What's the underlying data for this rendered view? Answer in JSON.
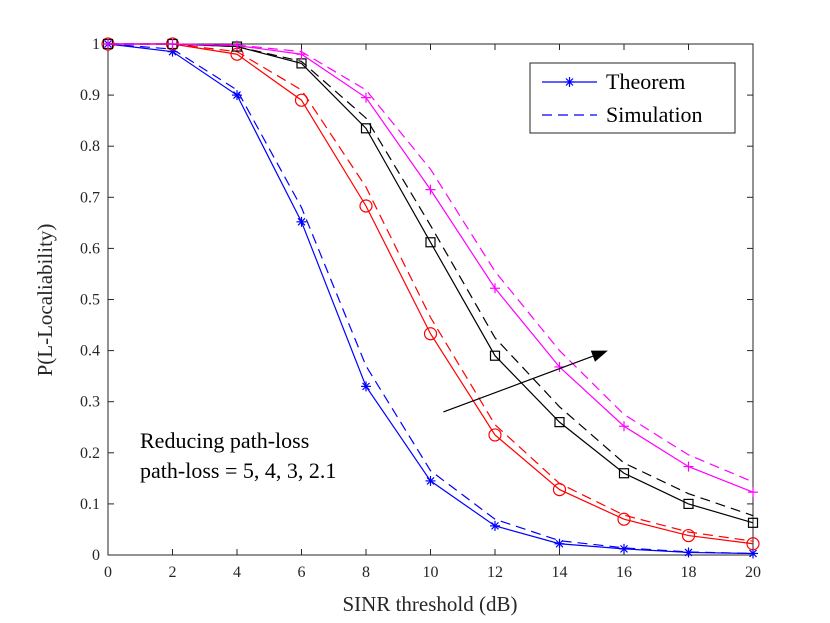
{
  "chart_data": {
    "type": "line",
    "xlabel": "SINR threshold (dB)",
    "ylabel": "P(L-Localiability)",
    "xlim": [
      0,
      20
    ],
    "ylim": [
      0,
      1
    ],
    "xticks": [
      0,
      2,
      4,
      6,
      8,
      10,
      12,
      14,
      16,
      18,
      20
    ],
    "yticks": [
      0,
      0.1,
      0.2,
      0.3,
      0.4,
      0.5,
      0.6,
      0.7,
      0.8,
      0.9,
      1
    ],
    "x": [
      0,
      2,
      4,
      6,
      8,
      10,
      12,
      14,
      16,
      18,
      20
    ],
    "legend": {
      "position": "top-right",
      "entries": [
        {
          "label": "Theorem",
          "style": "solid-marker"
        },
        {
          "label": "Simulation",
          "style": "dashed"
        }
      ]
    },
    "annotation": {
      "lines": [
        "Reducing path-loss",
        "path-loss = 5, 4, 3, 2.1"
      ],
      "arrow_from": [
        10.4,
        0.28
      ],
      "arrow_to": [
        15.5,
        0.4
      ]
    },
    "series": [
      {
        "name": "path-loss = 5",
        "color": "#0000ff",
        "marker": "asterisk",
        "theorem": [
          1.0,
          0.985,
          0.9,
          0.652,
          0.33,
          0.145,
          0.057,
          0.022,
          0.012,
          0.005,
          0.003
        ],
        "simulation": [
          1.0,
          0.99,
          0.91,
          0.68,
          0.37,
          0.165,
          0.07,
          0.028,
          0.014,
          0.006,
          0.003
        ]
      },
      {
        "name": "path-loss = 4",
        "color": "#ff0000",
        "marker": "circle",
        "theorem": [
          1.0,
          1.0,
          0.98,
          0.89,
          0.683,
          0.433,
          0.235,
          0.128,
          0.07,
          0.038,
          0.022
        ],
        "simulation": [
          1.0,
          1.0,
          0.985,
          0.91,
          0.72,
          0.465,
          0.255,
          0.14,
          0.078,
          0.045,
          0.027
        ]
      },
      {
        "name": "path-loss = 3",
        "color": "#000000",
        "marker": "square",
        "theorem": [
          1.0,
          1.0,
          0.995,
          0.962,
          0.835,
          0.612,
          0.39,
          0.26,
          0.16,
          0.1,
          0.063
        ],
        "simulation": [
          1.0,
          1.0,
          0.995,
          0.966,
          0.855,
          0.645,
          0.425,
          0.29,
          0.18,
          0.12,
          0.077
        ]
      },
      {
        "name": "path-loss = 2.1",
        "color": "#ff00ff",
        "marker": "plus",
        "theorem": [
          1.0,
          1.0,
          0.997,
          0.98,
          0.895,
          0.715,
          0.522,
          0.368,
          0.252,
          0.173,
          0.123
        ],
        "simulation": [
          1.0,
          1.0,
          0.998,
          0.985,
          0.91,
          0.755,
          0.555,
          0.4,
          0.275,
          0.196,
          0.143
        ]
      }
    ]
  }
}
